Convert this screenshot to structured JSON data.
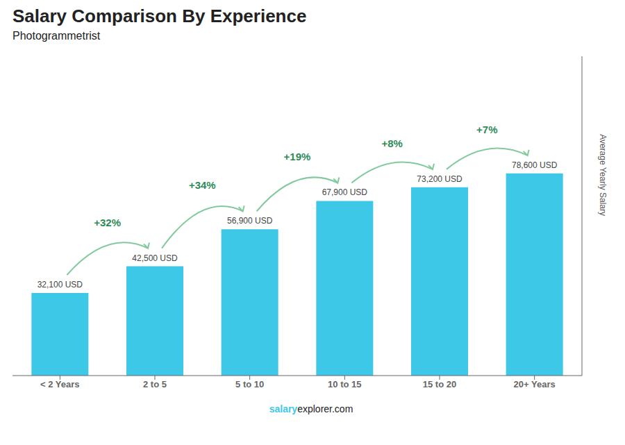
{
  "chart_data": {
    "type": "bar",
    "title": "Salary Comparison By Experience",
    "subtitle": "Photogrammetrist",
    "categories": [
      "< 2 Years",
      "2 to 5",
      "5 to 10",
      "10 to 15",
      "15 to 20",
      "20+ Years"
    ],
    "values": [
      32100,
      42500,
      56900,
      67900,
      73200,
      78600
    ],
    "value_labels": [
      "32,100 USD",
      "42,500 USD",
      "56,900 USD",
      "67,900 USD",
      "73,200 USD",
      "78,600 USD"
    ],
    "data_labels": true,
    "annotations": [
      "+32%",
      "+34%",
      "+19%",
      "+8%",
      "+7%"
    ],
    "ylabel": "Average Yearly Salary",
    "footer": [
      "salary",
      "explorer.com"
    ],
    "color": "#3DC8E8",
    "ylim": [
      0,
      124188
    ],
    "tick_labels": "x",
    "grid": false
  }
}
